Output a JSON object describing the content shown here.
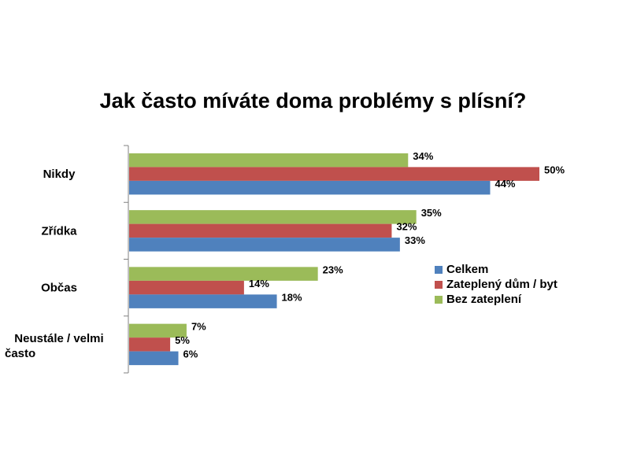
{
  "chart_data": {
    "type": "bar",
    "orientation": "horizontal",
    "title": "Jak často míváte doma problémy s plísní?",
    "categories": [
      "Nikdy",
      "Zřídka",
      "Občas",
      "Neustále / velmi často"
    ],
    "series": [
      {
        "name": "Celkem",
        "color": "#4F81BD",
        "values": [
          44,
          33,
          18,
          6
        ]
      },
      {
        "name": "Zateplený dům / byt",
        "color": "#C0504D",
        "values": [
          50,
          32,
          14,
          5
        ]
      },
      {
        "name": "Bez zateplení",
        "color": "#9BBB59",
        "values": [
          34,
          35,
          23,
          7
        ]
      }
    ],
    "value_suffix": "%",
    "xlim": [
      0,
      50
    ],
    "grid": false,
    "legend_position": "right"
  }
}
